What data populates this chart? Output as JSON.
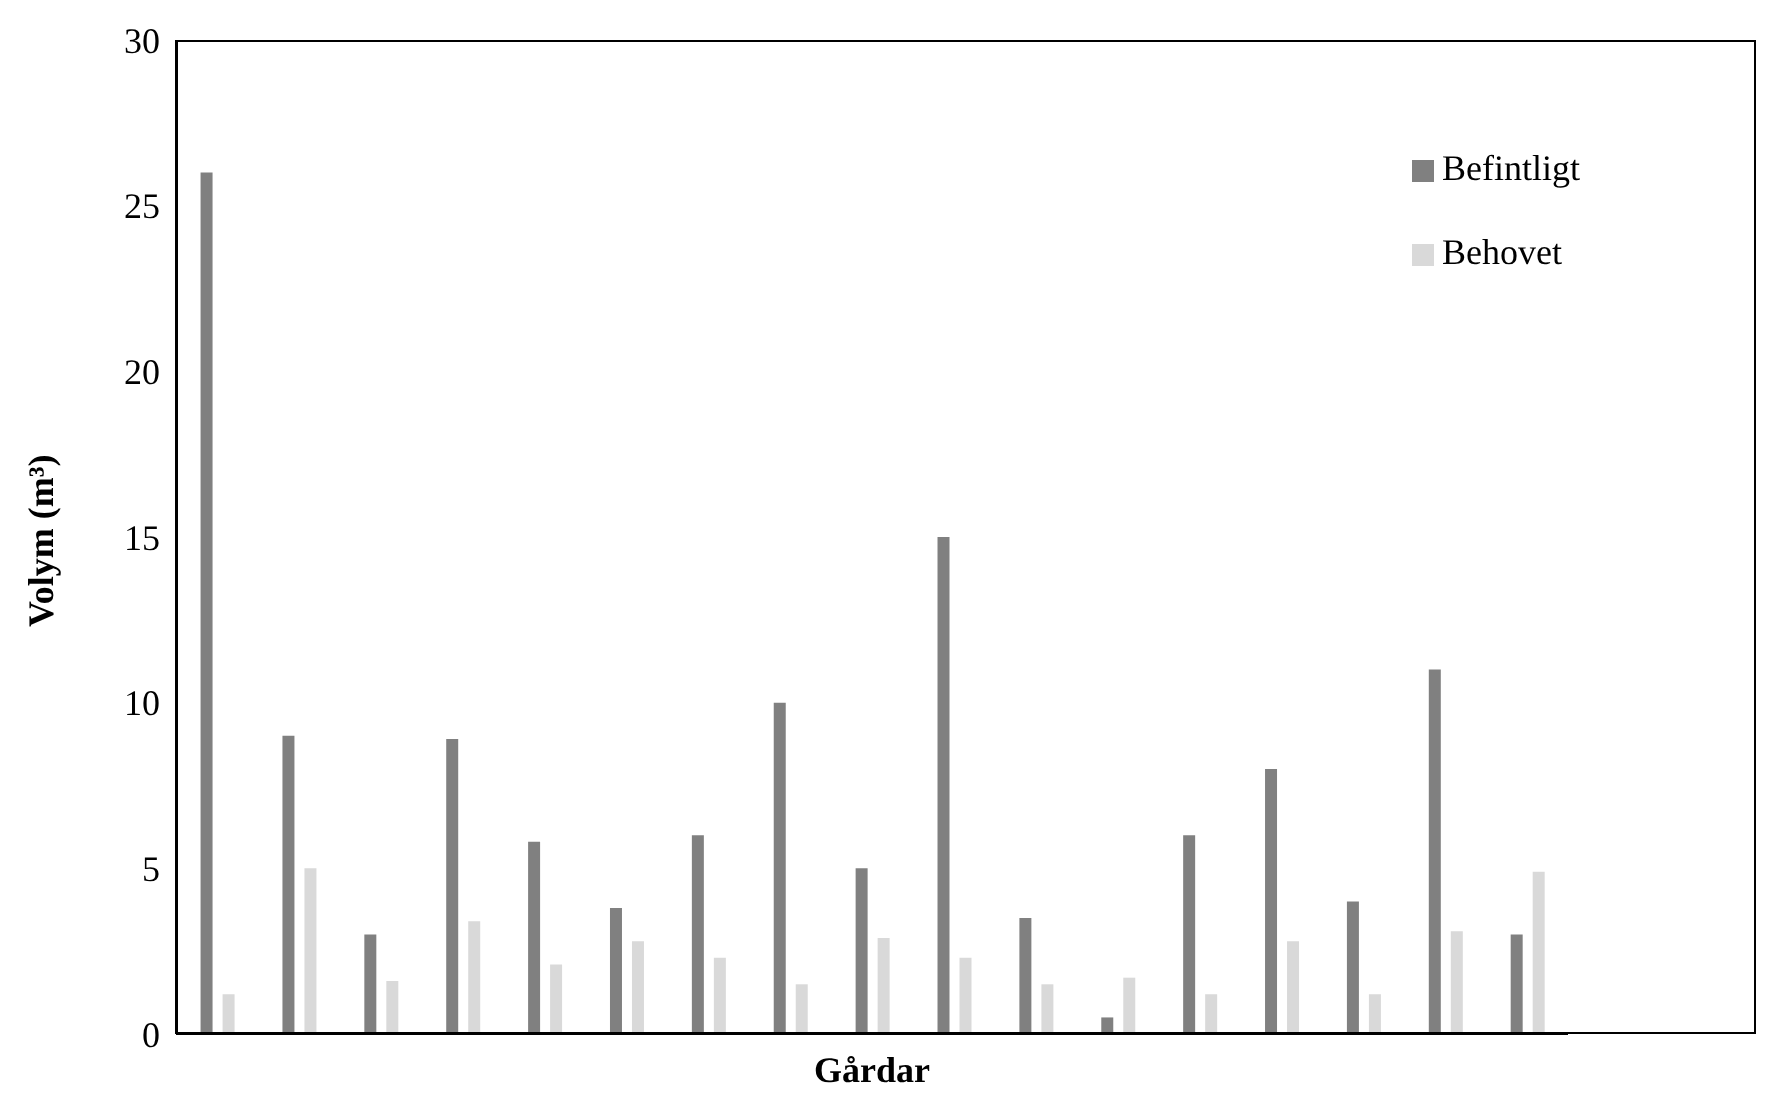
{
  "chart_data": {
    "type": "bar",
    "xlabel": "Gårdar",
    "ylabel": "Volym (m³)",
    "categories": [
      null,
      null,
      null,
      null,
      null,
      null,
      null,
      null,
      null,
      null,
      null,
      null,
      null,
      null,
      null,
      null,
      null
    ],
    "series": [
      {
        "name": "Befintligt",
        "color": "#808080",
        "values": [
          26,
          9,
          3,
          8.9,
          5.8,
          3.8,
          6,
          10,
          5,
          15,
          3.5,
          0.5,
          6,
          8,
          4,
          11,
          3
        ]
      },
      {
        "name": "Behovet",
        "color": "#d9d9d9",
        "values": [
          1.2,
          5,
          1.6,
          3.4,
          2.1,
          2.8,
          2.3,
          1.5,
          2.9,
          2.3,
          1.5,
          1.7,
          1.2,
          2.8,
          1.2,
          3.1,
          4.9
        ]
      }
    ],
    "ylim": [
      0,
      30
    ],
    "yticks": [
      0,
      5,
      10,
      15,
      20,
      25,
      30
    ],
    "grid": false,
    "legend": "top right"
  }
}
